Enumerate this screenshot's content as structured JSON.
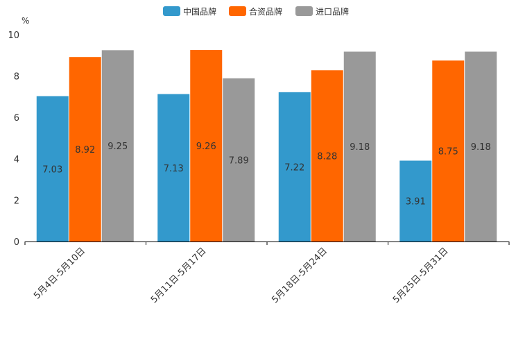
{
  "chart_data": {
    "type": "bar",
    "title": "",
    "xlabel": "",
    "ylabel": "%",
    "ylim": [
      0,
      10
    ],
    "yticks": [
      0,
      2,
      4,
      6,
      8,
      10
    ],
    "grid": false,
    "legend_position": "top-center",
    "categories": [
      "5月4日-5月10日",
      "5月11日-5月17日",
      "5月18日-5月24日",
      "5月25日-5月31日"
    ],
    "series": [
      {
        "name": "中国品牌",
        "color": "#3399cc",
        "values": [
          7.03,
          7.13,
          7.22,
          3.91
        ],
        "labels": [
          "7.03",
          "7.13",
          "7.22",
          "3.91"
        ]
      },
      {
        "name": "合资品牌",
        "color": "#ff6600",
        "values": [
          8.92,
          9.26,
          8.28,
          8.75
        ],
        "labels": [
          "8.92",
          "9.26",
          "8.28",
          "8.75"
        ]
      },
      {
        "name": "进口品牌",
        "color": "#999999",
        "values": [
          9.25,
          7.89,
          9.18,
          9.18
        ],
        "labels": [
          "9.25",
          "7.89",
          "9.18",
          "9.18"
        ]
      }
    ]
  }
}
